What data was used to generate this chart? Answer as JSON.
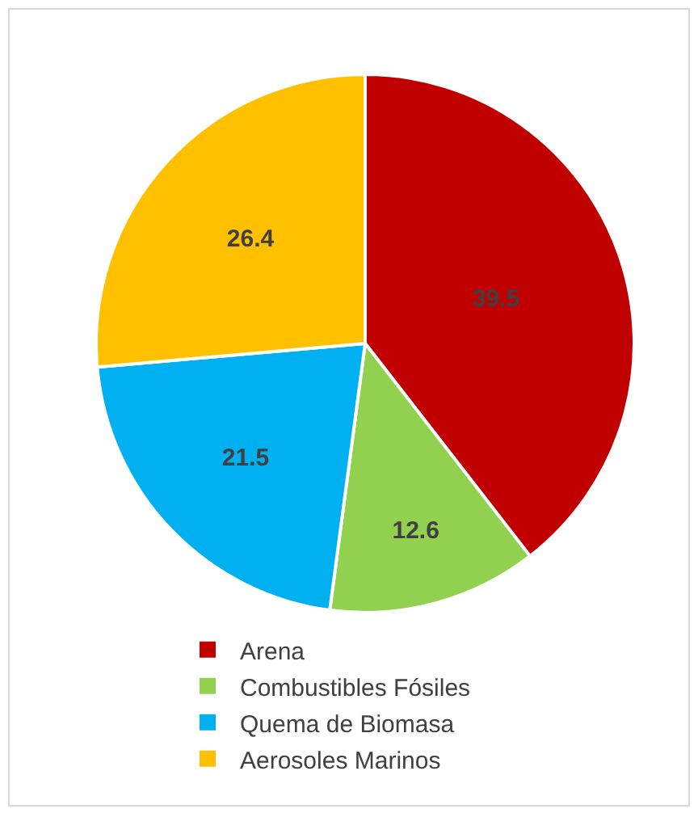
{
  "chart_data": {
    "type": "pie",
    "categories": [
      "Arena",
      "Combustibles Fósiles",
      "Quema de Biomasa",
      "Aerosoles Marinos"
    ],
    "values": [
      39.5,
      12.6,
      21.5,
      26.4
    ],
    "colors": [
      "#c00000",
      "#92d050",
      "#00b0f0",
      "#ffc000"
    ],
    "data_labels": true,
    "legend": "bottom"
  }
}
